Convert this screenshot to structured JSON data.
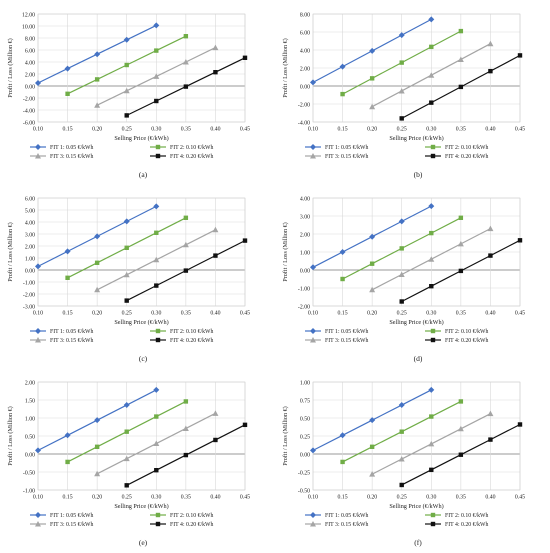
{
  "chart_data": [
    {
      "type": "line",
      "panel_label": "(a)",
      "xlabel": "Selling Price (€/kWh)",
      "ylabel": "Profit / Loss (Million €)",
      "xlim": [
        0.1,
        0.45
      ],
      "ylim": [
        -6.0,
        12.0
      ],
      "xticks": [
        "0.10",
        "0.15",
        "0.20",
        "0.25",
        "0.30",
        "0.35",
        "0.40",
        "0.45"
      ],
      "yticks": [
        "-6.00",
        "-4.00",
        "-2.00",
        "0.00",
        "2.00",
        "4.00",
        "6.00",
        "8.00",
        "10.00",
        "12.00"
      ],
      "grid": true,
      "legend": "bottom",
      "series": [
        {
          "name": "FIT 1: 0.05 €/kWh",
          "color": "#4472c4",
          "marker": "diamond",
          "x": [
            0.1,
            0.15,
            0.2,
            0.25,
            0.3
          ],
          "y": [
            0.5,
            2.9,
            5.3,
            7.7,
            10.1
          ]
        },
        {
          "name": "FIT 2: 0.10 €/kWh",
          "color": "#70ad47",
          "marker": "square",
          "x": [
            0.15,
            0.2,
            0.25,
            0.3,
            0.35
          ],
          "y": [
            -1.3,
            1.1,
            3.5,
            5.9,
            8.3
          ]
        },
        {
          "name": "FIT 3: 0.15 €/kWh",
          "color": "#a5a5a5",
          "marker": "triangle",
          "x": [
            0.2,
            0.25,
            0.3,
            0.35,
            0.4
          ],
          "y": [
            -3.2,
            -0.8,
            1.6,
            4.0,
            6.4
          ]
        },
        {
          "name": "FIT 4: 0.20 €/kWh",
          "color": "#111111",
          "marker": "square",
          "x": [
            0.25,
            0.3,
            0.35,
            0.4,
            0.45
          ],
          "y": [
            -4.9,
            -2.5,
            -0.1,
            2.3,
            4.7
          ]
        }
      ]
    },
    {
      "type": "line",
      "panel_label": "(b)",
      "xlabel": "Selling Price (€/kWh)",
      "ylabel": "Profit / Loss (Million €)",
      "xlim": [
        0.1,
        0.45
      ],
      "ylim": [
        -4.0,
        8.0
      ],
      "xticks": [
        "0.10",
        "0.15",
        "0.20",
        "0.25",
        "0.30",
        "0.35",
        "0.40",
        "0.45"
      ],
      "yticks": [
        "-4.00",
        "-2.00",
        "0.00",
        "2.00",
        "4.00",
        "6.00",
        "8.00"
      ],
      "grid": true,
      "legend": "bottom",
      "series": [
        {
          "name": "FIT 1: 0.05 €/kWh",
          "color": "#4472c4",
          "marker": "diamond",
          "x": [
            0.1,
            0.15,
            0.2,
            0.25,
            0.3
          ],
          "y": [
            0.4,
            2.15,
            3.9,
            5.65,
            7.4
          ]
        },
        {
          "name": "FIT 2: 0.10 €/kWh",
          "color": "#70ad47",
          "marker": "square",
          "x": [
            0.15,
            0.2,
            0.25,
            0.3,
            0.35
          ],
          "y": [
            -0.9,
            0.85,
            2.6,
            4.35,
            6.1
          ]
        },
        {
          "name": "FIT 3: 0.15 €/kWh",
          "color": "#a5a5a5",
          "marker": "triangle",
          "x": [
            0.2,
            0.25,
            0.3,
            0.35,
            0.4
          ],
          "y": [
            -2.3,
            -0.55,
            1.2,
            2.95,
            4.7
          ]
        },
        {
          "name": "FIT 4: 0.20 €/kWh",
          "color": "#111111",
          "marker": "square",
          "x": [
            0.25,
            0.3,
            0.35,
            0.4,
            0.45
          ],
          "y": [
            -3.6,
            -1.85,
            -0.1,
            1.65,
            3.4
          ]
        }
      ]
    },
    {
      "type": "line",
      "panel_label": "(c)",
      "xlabel": "Selling Price (€/kWh)",
      "ylabel": "Profit / Loss (Million €)",
      "xlim": [
        0.1,
        0.45
      ],
      "ylim": [
        -3.0,
        6.0
      ],
      "xticks": [
        "0.10",
        "0.15",
        "0.20",
        "0.25",
        "0.30",
        "0.35",
        "0.40",
        "0.45"
      ],
      "yticks": [
        "-3.00",
        "-2.00",
        "-1.00",
        "0.00",
        "1.00",
        "2.00",
        "3.00",
        "4.00",
        "5.00",
        "6.00"
      ],
      "grid": true,
      "legend": "bottom",
      "series": [
        {
          "name": "FIT 1: 0.05 €/kWh",
          "color": "#4472c4",
          "marker": "diamond",
          "x": [
            0.1,
            0.15,
            0.2,
            0.25,
            0.3
          ],
          "y": [
            0.3,
            1.55,
            2.8,
            4.05,
            5.3
          ]
        },
        {
          "name": "FIT 2: 0.10 €/kWh",
          "color": "#70ad47",
          "marker": "square",
          "x": [
            0.15,
            0.2,
            0.25,
            0.3,
            0.35
          ],
          "y": [
            -0.65,
            0.6,
            1.85,
            3.1,
            4.35
          ]
        },
        {
          "name": "FIT 3: 0.15 €/kWh",
          "color": "#a5a5a5",
          "marker": "triangle",
          "x": [
            0.2,
            0.25,
            0.3,
            0.35,
            0.4
          ],
          "y": [
            -1.65,
            -0.4,
            0.85,
            2.1,
            3.35
          ]
        },
        {
          "name": "FIT 4: 0.20 €/kWh",
          "color": "#111111",
          "marker": "square",
          "x": [
            0.25,
            0.3,
            0.35,
            0.4,
            0.45
          ],
          "y": [
            -2.55,
            -1.3,
            -0.05,
            1.2,
            2.45
          ]
        }
      ]
    },
    {
      "type": "line",
      "panel_label": "(d)",
      "xlabel": "Selling Price (€/kWh)",
      "ylabel": "Profit / Loss (Million €)",
      "xlim": [
        0.1,
        0.45
      ],
      "ylim": [
        -2.0,
        4.0
      ],
      "xticks": [
        "0.10",
        "0.15",
        "0.20",
        "0.25",
        "0.30",
        "0.35",
        "0.40",
        "0.45"
      ],
      "yticks": [
        "-2.00",
        "-1.00",
        "0.00",
        "1.00",
        "2.00",
        "3.00",
        "4.00"
      ],
      "grid": true,
      "legend": "bottom",
      "series": [
        {
          "name": "FIT 1: 0.05 €/kWh",
          "color": "#4472c4",
          "marker": "diamond",
          "x": [
            0.1,
            0.15,
            0.2,
            0.25,
            0.3
          ],
          "y": [
            0.15,
            1.0,
            1.85,
            2.7,
            3.55
          ]
        },
        {
          "name": "FIT 2: 0.10 €/kWh",
          "color": "#70ad47",
          "marker": "square",
          "x": [
            0.15,
            0.2,
            0.25,
            0.3,
            0.35
          ],
          "y": [
            -0.5,
            0.35,
            1.2,
            2.05,
            2.9
          ]
        },
        {
          "name": "FIT 3: 0.15 €/kWh",
          "color": "#a5a5a5",
          "marker": "triangle",
          "x": [
            0.2,
            0.25,
            0.3,
            0.35,
            0.4
          ],
          "y": [
            -1.1,
            -0.25,
            0.6,
            1.45,
            2.3
          ]
        },
        {
          "name": "FIT 4: 0.20 €/kWh",
          "color": "#111111",
          "marker": "square",
          "x": [
            0.25,
            0.3,
            0.35,
            0.4,
            0.45
          ],
          "y": [
            -1.75,
            -0.9,
            -0.05,
            0.8,
            1.65
          ]
        }
      ]
    },
    {
      "type": "line",
      "panel_label": "(e)",
      "xlabel": "Selling Price (€/kWh)",
      "ylabel": "Profit / Loss (Million €)",
      "xlim": [
        0.1,
        0.45
      ],
      "ylim": [
        -1.0,
        2.0
      ],
      "xticks": [
        "0.10",
        "0.15",
        "0.20",
        "0.25",
        "0.30",
        "0.35",
        "0.40",
        "0.45"
      ],
      "yticks": [
        "-1.00",
        "-0.50",
        "0.00",
        "0.50",
        "1.00",
        "1.50",
        "2.00"
      ],
      "grid": true,
      "legend": "bottom",
      "series": [
        {
          "name": "FIT 1: 0.05 €/kWh",
          "color": "#4472c4",
          "marker": "diamond",
          "x": [
            0.1,
            0.15,
            0.2,
            0.25,
            0.3
          ],
          "y": [
            0.1,
            0.52,
            0.94,
            1.36,
            1.78
          ]
        },
        {
          "name": "FIT 2: 0.10 €/kWh",
          "color": "#70ad47",
          "marker": "square",
          "x": [
            0.15,
            0.2,
            0.25,
            0.3,
            0.35
          ],
          "y": [
            -0.22,
            0.2,
            0.62,
            1.04,
            1.46
          ]
        },
        {
          "name": "FIT 3: 0.15 €/kWh",
          "color": "#a5a5a5",
          "marker": "triangle",
          "x": [
            0.2,
            0.25,
            0.3,
            0.35,
            0.4
          ],
          "y": [
            -0.55,
            -0.13,
            0.29,
            0.71,
            1.13
          ]
        },
        {
          "name": "FIT 4: 0.20 €/kWh",
          "color": "#111111",
          "marker": "square",
          "x": [
            0.25,
            0.3,
            0.35,
            0.4,
            0.45
          ],
          "y": [
            -0.87,
            -0.45,
            -0.03,
            0.39,
            0.81
          ]
        }
      ]
    },
    {
      "type": "line",
      "panel_label": "(f)",
      "xlabel": "Selling Price (€/kWh)",
      "ylabel": "Profit / Loss (Million €)",
      "xlim": [
        0.1,
        0.45
      ],
      "ylim": [
        -0.5,
        1.0
      ],
      "xticks": [
        "0.10",
        "0.15",
        "0.20",
        "0.25",
        "0.30",
        "0.35",
        "0.40",
        "0.45"
      ],
      "yticks": [
        "-0.50",
        "-0.25",
        "0.00",
        "0.25",
        "0.50",
        "0.75",
        "1.00"
      ],
      "grid": true,
      "legend": "bottom",
      "series": [
        {
          "name": "FIT 1: 0.05 €/kWh",
          "color": "#4472c4",
          "marker": "diamond",
          "x": [
            0.1,
            0.15,
            0.2,
            0.25,
            0.3
          ],
          "y": [
            0.05,
            0.26,
            0.47,
            0.68,
            0.89
          ]
        },
        {
          "name": "FIT 2: 0.10 €/kWh",
          "color": "#70ad47",
          "marker": "square",
          "x": [
            0.15,
            0.2,
            0.25,
            0.3,
            0.35
          ],
          "y": [
            -0.11,
            0.1,
            0.31,
            0.52,
            0.73
          ]
        },
        {
          "name": "FIT 3: 0.15 €/kWh",
          "color": "#a5a5a5",
          "marker": "triangle",
          "x": [
            0.2,
            0.25,
            0.3,
            0.35,
            0.4
          ],
          "y": [
            -0.28,
            -0.07,
            0.14,
            0.35,
            0.56
          ]
        },
        {
          "name": "FIT 4: 0.20 €/kWh",
          "color": "#111111",
          "marker": "square",
          "x": [
            0.25,
            0.3,
            0.35,
            0.4,
            0.45
          ],
          "y": [
            -0.43,
            -0.22,
            -0.01,
            0.2,
            0.41
          ]
        }
      ]
    }
  ]
}
